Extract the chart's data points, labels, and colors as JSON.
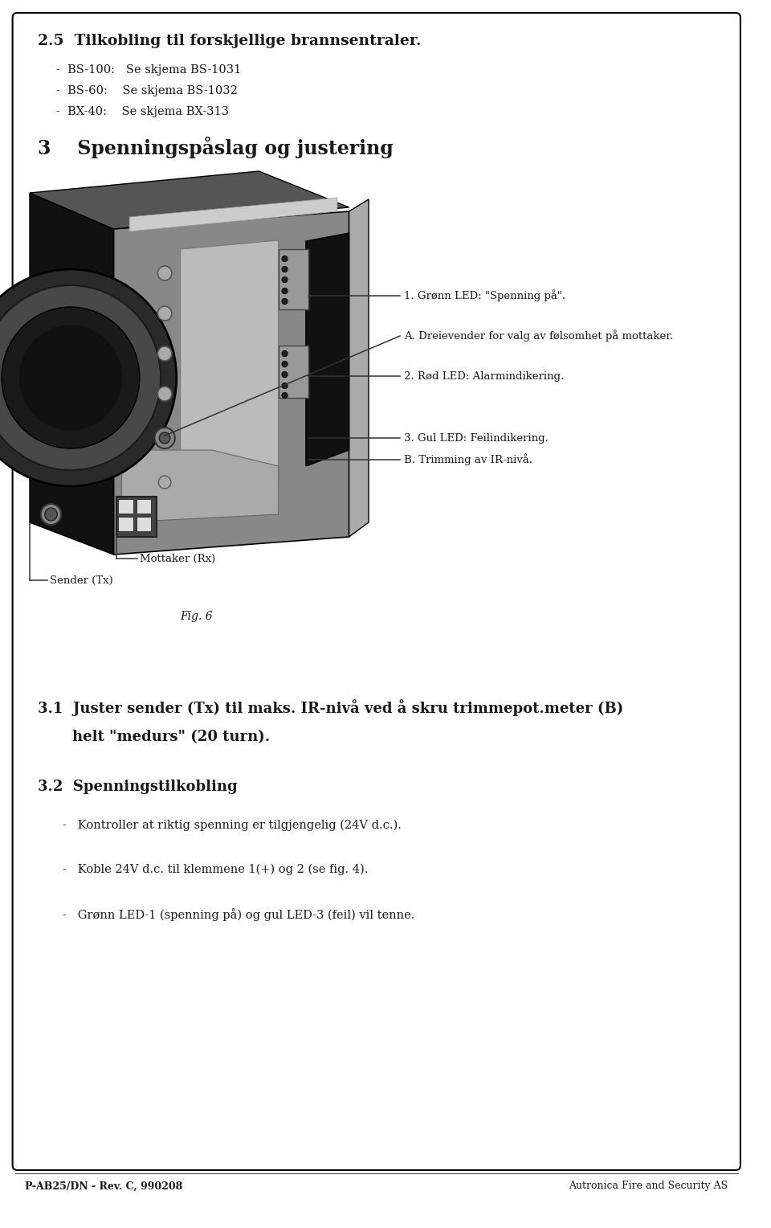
{
  "bg_color": "#ffffff",
  "border_color": "#000000",
  "page_width": 9.6,
  "page_height": 15.28,
  "section_25_title": "2.5  Tilkobling til forskjellige brannsentraler.",
  "section_25_bullets": [
    "BS-100:   Se skjema BS-1031",
    "BS-60:    Se skjema BS-1032",
    "BX-40:    Se skjema BX-313"
  ],
  "section_3_title": "3    Spenningspåslag og justering",
  "callouts": [
    "1. Grønn LED: \"Spenning på\".",
    "A. Dreievender for valg av følsomhet på mottaker.",
    "2. Rød LED: Alarmindikering.",
    "3. Gul LED: Feilindikering.",
    "B. Trimming av IR-nivå."
  ],
  "label_mottaker": "Mottaker (Rx)",
  "label_sender": "Sender (Tx)",
  "label_fig": "Fig. 6",
  "section_31_line1": "3.1  Juster sender (Tx) til maks. IR-nivå ved å skru trimmepot.meter (B)",
  "section_31_line2": "     helt \"medurs\" (20 turn).",
  "section_32_title": "3.2  Spenningstilkobling",
  "section_32_bullets": [
    "Kontroller at riktig spenning er tilgjengelig (24V d.c.).",
    "Koble 24V d.c. til klemmene 1(+) og 2 (se fig. 4).",
    "Grønn LED-1 (spenning på) og gul LED-3 (feil) vil tenne."
  ],
  "footer_left": "P-AB25/DN - Rev. C, 990208",
  "footer_right": "Autronica Fire and Security AS",
  "text_color": "#1a1a1a"
}
